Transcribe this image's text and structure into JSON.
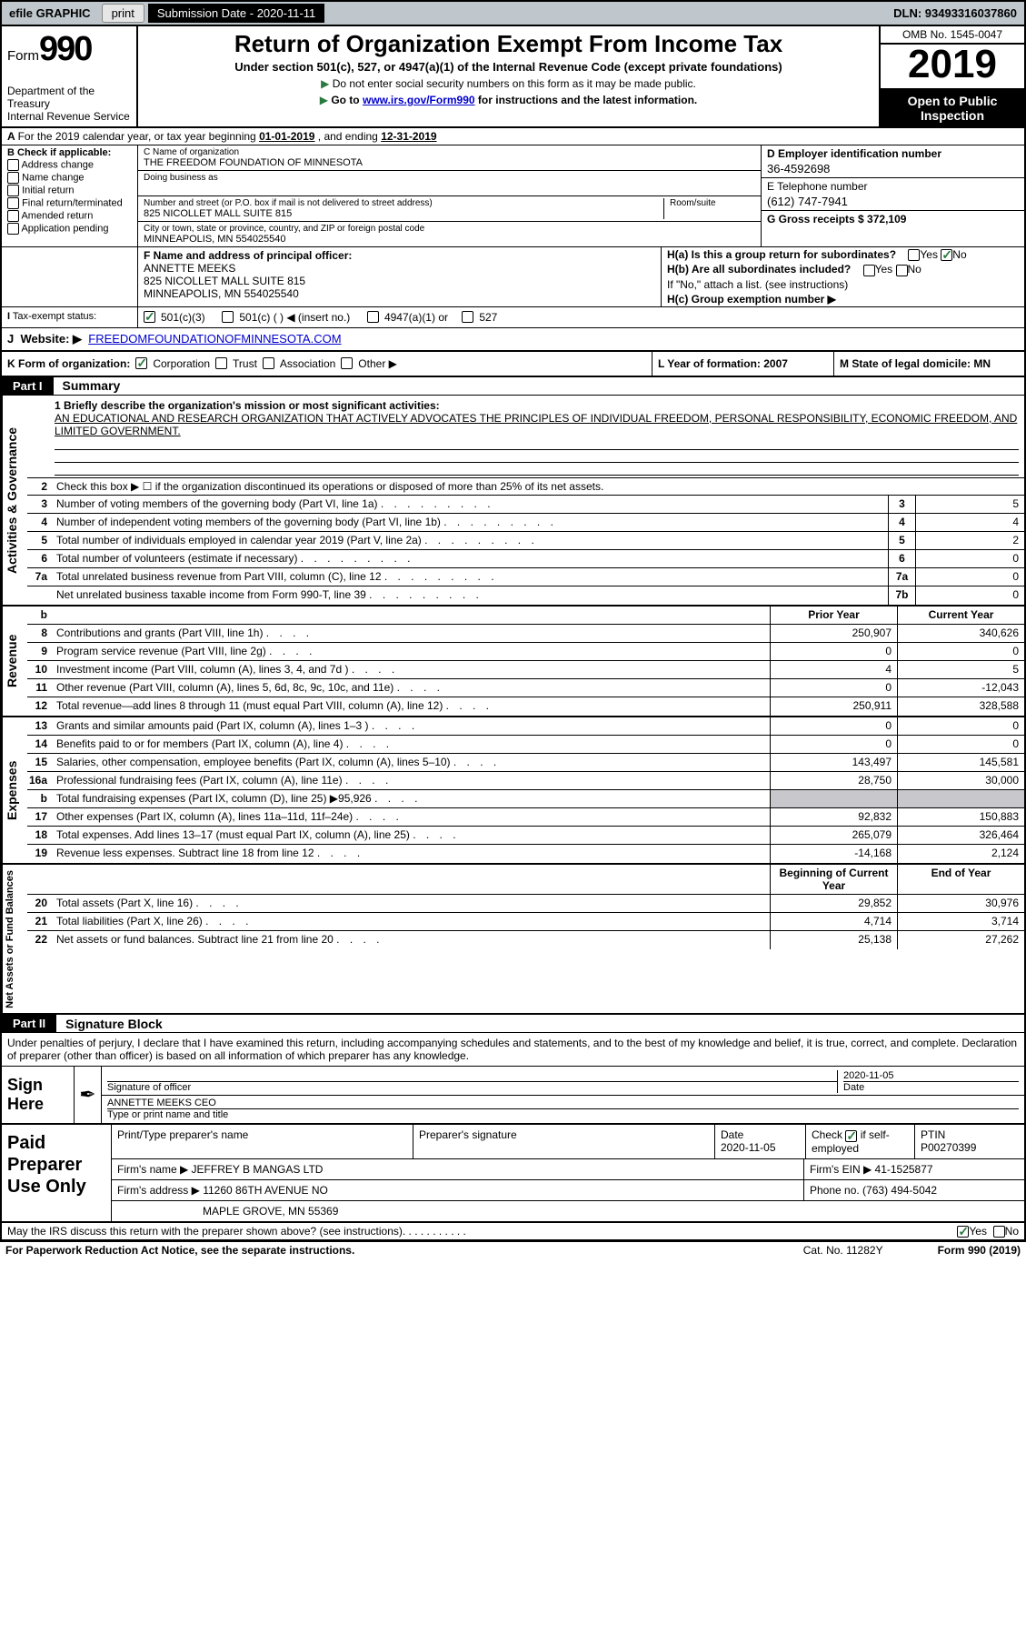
{
  "topbar": {
    "efile": "efile GRAPHIC",
    "print": "print",
    "subdate_label": "Submission Date - 2020-11-11",
    "dln": "DLN: 93493316037860"
  },
  "header": {
    "form_label": "Form",
    "form_num": "990",
    "dept": "Department of the Treasury\nInternal Revenue Service",
    "title": "Return of Organization Exempt From Income Tax",
    "sub": "Under section 501(c), 527, or 4947(a)(1) of the Internal Revenue Code (except private foundations)",
    "note1": "Do not enter social security numbers on this form as it may be made public.",
    "note2_pre": "Go to ",
    "note2_link": "www.irs.gov/Form990",
    "note2_post": " for instructions and the latest information.",
    "omb": "OMB No. 1545-0047",
    "year": "2019",
    "open": "Open to Public Inspection"
  },
  "rowA": {
    "text_pre": "For the 2019 calendar year, or tax year beginning ",
    "begin": "01-01-2019",
    "mid": " , and ending ",
    "end": "12-31-2019"
  },
  "colB": {
    "label": "B Check if applicable:",
    "items": [
      "Address change",
      "Name change",
      "Initial return",
      "Final return/terminated",
      "Amended return",
      "Application pending"
    ]
  },
  "colC": {
    "name_label": "C Name of organization",
    "name": "THE FREEDOM FOUNDATION OF MINNESOTA",
    "dba_label": "Doing business as",
    "addr_label": "Number and street (or P.O. box if mail is not delivered to street address)",
    "room_label": "Room/suite",
    "addr": "825 NICOLLET MALL SUITE 815",
    "city_label": "City or town, state or province, country, and ZIP or foreign postal code",
    "city": "MINNEAPOLIS, MN  554025540"
  },
  "colD": {
    "label": "D Employer identification number",
    "val": "36-4592698"
  },
  "colE": {
    "label": "E Telephone number",
    "val": "(612) 747-7941"
  },
  "colG": {
    "text": "G Gross receipts $ 372,109"
  },
  "colF": {
    "label": "F  Name and address of principal officer:",
    "name": "ANNETTE MEEKS",
    "addr1": "825 NICOLLET MALL SUITE 815",
    "addr2": "MINNEAPOLIS, MN  554025540"
  },
  "colH": {
    "a": "H(a)  Is this a group return for subordinates?",
    "b": "H(b)  Are all subordinates included?",
    "bnote": "If \"No,\" attach a list. (see instructions)",
    "c": "H(c)  Group exemption number ▶"
  },
  "rowI": {
    "label": "Tax-exempt status:",
    "opts": [
      "501(c)(3)",
      "501(c) (  ) ◀ (insert no.)",
      "4947(a)(1) or",
      "527"
    ]
  },
  "rowJ": {
    "label": "Website: ▶",
    "val": "FREEDOMFOUNDATIONOFMINNESOTA.COM"
  },
  "rowK": {
    "label": "K Form of organization:",
    "opts": [
      "Corporation",
      "Trust",
      "Association",
      "Other ▶"
    ],
    "L": "L Year of formation: 2007",
    "M": "M State of legal domicile: MN"
  },
  "part1": {
    "tag": "Part I",
    "title": "Summary",
    "q1_label": "1  Briefly describe the organization's mission or most significant activities:",
    "q1_text": "AN EDUCATIONAL AND RESEARCH ORGANIZATION THAT ACTIVELY ADVOCATES THE PRINCIPLES OF INDIVIDUAL FREEDOM, PERSONAL RESPONSIBILITY, ECONOMIC FREEDOM, AND LIMITED GOVERNMENT.",
    "q2": "Check this box ▶ ☐  if the organization discontinued its operations or disposed of more than 25% of its net assets."
  },
  "activities": {
    "side": "Activities & Governance",
    "lines": [
      {
        "n": "3",
        "d": "Number of voting members of the governing body (Part VI, line 1a)",
        "box": "3",
        "v": "5"
      },
      {
        "n": "4",
        "d": "Number of independent voting members of the governing body (Part VI, line 1b)",
        "box": "4",
        "v": "4"
      },
      {
        "n": "5",
        "d": "Total number of individuals employed in calendar year 2019 (Part V, line 2a)",
        "box": "5",
        "v": "2"
      },
      {
        "n": "6",
        "d": "Total number of volunteers (estimate if necessary)",
        "box": "6",
        "v": "0"
      },
      {
        "n": "7a",
        "d": "Total unrelated business revenue from Part VIII, column (C), line 12",
        "box": "7a",
        "v": "0"
      },
      {
        "n": "",
        "d": "Net unrelated business taxable income from Form 990-T, line 39",
        "box": "7b",
        "v": "0"
      }
    ]
  },
  "revenue": {
    "side": "Revenue",
    "hdr_prior": "Prior Year",
    "hdr_curr": "Current Year",
    "lines": [
      {
        "n": "8",
        "d": "Contributions and grants (Part VIII, line 1h)",
        "p": "250,907",
        "c": "340,626"
      },
      {
        "n": "9",
        "d": "Program service revenue (Part VIII, line 2g)",
        "p": "0",
        "c": "0"
      },
      {
        "n": "10",
        "d": "Investment income (Part VIII, column (A), lines 3, 4, and 7d )",
        "p": "4",
        "c": "5"
      },
      {
        "n": "11",
        "d": "Other revenue (Part VIII, column (A), lines 5, 6d, 8c, 9c, 10c, and 11e)",
        "p": "0",
        "c": "-12,043"
      },
      {
        "n": "12",
        "d": "Total revenue—add lines 8 through 11 (must equal Part VIII, column (A), line 12)",
        "p": "250,911",
        "c": "328,588"
      }
    ]
  },
  "expenses": {
    "side": "Expenses",
    "lines": [
      {
        "n": "13",
        "d": "Grants and similar amounts paid (Part IX, column (A), lines 1–3 )",
        "p": "0",
        "c": "0"
      },
      {
        "n": "14",
        "d": "Benefits paid to or for members (Part IX, column (A), line 4)",
        "p": "0",
        "c": "0"
      },
      {
        "n": "15",
        "d": "Salaries, other compensation, employee benefits (Part IX, column (A), lines 5–10)",
        "p": "143,497",
        "c": "145,581"
      },
      {
        "n": "16a",
        "d": "Professional fundraising fees (Part IX, column (A), line 11e)",
        "p": "28,750",
        "c": "30,000"
      },
      {
        "n": "b",
        "d": "Total fundraising expenses (Part IX, column (D), line 25) ▶95,926",
        "p": "",
        "c": "",
        "shade": true
      },
      {
        "n": "17",
        "d": "Other expenses (Part IX, column (A), lines 11a–11d, 11f–24e)",
        "p": "92,832",
        "c": "150,883"
      },
      {
        "n": "18",
        "d": "Total expenses. Add lines 13–17 (must equal Part IX, column (A), line 25)",
        "p": "265,079",
        "c": "326,464"
      },
      {
        "n": "19",
        "d": "Revenue less expenses. Subtract line 18 from line 12",
        "p": "-14,168",
        "c": "2,124"
      }
    ]
  },
  "netassets": {
    "side": "Net Assets or Fund Balances",
    "hdr_prior": "Beginning of Current Year",
    "hdr_curr": "End of Year",
    "lines": [
      {
        "n": "20",
        "d": "Total assets (Part X, line 16)",
        "p": "29,852",
        "c": "30,976"
      },
      {
        "n": "21",
        "d": "Total liabilities (Part X, line 26)",
        "p": "4,714",
        "c": "3,714"
      },
      {
        "n": "22",
        "d": "Net assets or fund balances. Subtract line 21 from line 20",
        "p": "25,138",
        "c": "27,262"
      }
    ]
  },
  "part2": {
    "tag": "Part II",
    "title": "Signature Block",
    "intro": "Under penalties of perjury, I declare that I have examined this return, including accompanying schedules and statements, and to the best of my knowledge and belief, it is true, correct, and complete. Declaration of preparer (other than officer) is based on all information of which preparer has any knowledge."
  },
  "sign": {
    "label": "Sign Here",
    "sig_label": "Signature of officer",
    "date": "2020-11-05",
    "date_label": "Date",
    "name": "ANNETTE MEEKS CEO",
    "name_label": "Type or print name and title"
  },
  "prep": {
    "label": "Paid Preparer Use Only",
    "r1": {
      "c1": "Print/Type preparer's name",
      "c2": "Preparer's signature",
      "c3": "Date\n2020-11-05",
      "c4_label": "Check",
      "c4_text": "if self-employed",
      "c5": "PTIN\nP00270399"
    },
    "r2": {
      "c1": "Firm's name    ▶ JEFFREY B MANGAS LTD",
      "c2": "Firm's EIN ▶ 41-1525877"
    },
    "r3": {
      "c1": "Firm's address ▶ 11260 86TH AVENUE NO",
      "c2": "Phone no. (763) 494-5042"
    },
    "r4": {
      "c1": "MAPLE GROVE, MN  55369"
    }
  },
  "footer": {
    "q": "May the IRS discuss this return with the preparer shown above? (see instructions)",
    "paperwork": "For Paperwork Reduction Act Notice, see the separate instructions.",
    "cat": "Cat. No. 11282Y",
    "form": "Form 990 (2019)"
  }
}
